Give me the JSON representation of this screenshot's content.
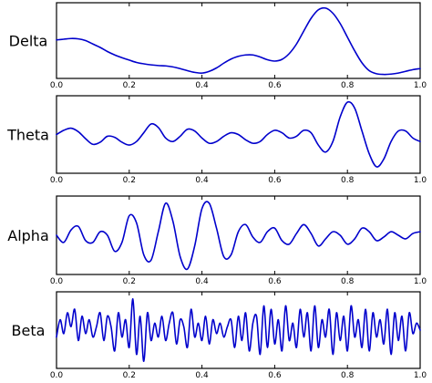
{
  "chart_data": [
    {
      "type": "line",
      "ylabel": "Delta",
      "xlim": [
        0,
        1
      ],
      "ylim": [
        -1,
        1
      ],
      "xticks": [
        "0.0",
        "0.2",
        "0.4",
        "0.6",
        "0.8",
        "1.0"
      ],
      "color": "#0000cc",
      "x": [
        0.0,
        0.02,
        0.04,
        0.06,
        0.08,
        0.1,
        0.12,
        0.14,
        0.16,
        0.18,
        0.2,
        0.22,
        0.24,
        0.26,
        0.28,
        0.3,
        0.32,
        0.34,
        0.36,
        0.38,
        0.4,
        0.42,
        0.44,
        0.46,
        0.48,
        0.5,
        0.52,
        0.54,
        0.56,
        0.58,
        0.6,
        0.62,
        0.64,
        0.66,
        0.68,
        0.7,
        0.72,
        0.74,
        0.76,
        0.78,
        0.8,
        0.82,
        0.84,
        0.86,
        0.88,
        0.9,
        0.92,
        0.94,
        0.96,
        0.98,
        1.0
      ],
      "y": [
        0.02,
        0.04,
        0.06,
        0.05,
        0.0,
        -0.1,
        -0.2,
        -0.32,
        -0.42,
        -0.5,
        -0.57,
        -0.64,
        -0.68,
        -0.71,
        -0.73,
        -0.74,
        -0.77,
        -0.82,
        -0.88,
        -0.93,
        -0.95,
        -0.9,
        -0.8,
        -0.66,
        -0.54,
        -0.46,
        -0.42,
        -0.42,
        -0.48,
        -0.56,
        -0.6,
        -0.55,
        -0.38,
        -0.1,
        0.28,
        0.65,
        0.9,
        0.95,
        0.8,
        0.5,
        0.1,
        -0.3,
        -0.65,
        -0.88,
        -0.97,
        -0.99,
        -0.98,
        -0.95,
        -0.9,
        -0.85,
        -0.82
      ]
    },
    {
      "type": "line",
      "ylabel": "Theta",
      "xlim": [
        0,
        1
      ],
      "ylim": [
        -1,
        1
      ],
      "xticks": [
        "0.0",
        "0.2",
        "0.4",
        "0.6",
        "0.8",
        "1.0"
      ],
      "color": "#0000cc",
      "x": [
        0.0,
        0.02,
        0.04,
        0.06,
        0.08,
        0.1,
        0.12,
        0.14,
        0.16,
        0.18,
        0.2,
        0.22,
        0.24,
        0.26,
        0.28,
        0.3,
        0.32,
        0.34,
        0.36,
        0.38,
        0.4,
        0.42,
        0.44,
        0.46,
        0.48,
        0.5,
        0.52,
        0.54,
        0.56,
        0.58,
        0.6,
        0.62,
        0.64,
        0.66,
        0.68,
        0.7,
        0.72,
        0.74,
        0.76,
        0.78,
        0.8,
        0.82,
        0.84,
        0.86,
        0.88,
        0.9,
        0.92,
        0.94,
        0.96,
        0.98,
        1.0
      ],
      "y": [
        0.0,
        0.12,
        0.18,
        0.08,
        -0.12,
        -0.28,
        -0.22,
        -0.05,
        -0.08,
        -0.22,
        -0.3,
        -0.2,
        0.05,
        0.3,
        0.2,
        -0.1,
        -0.2,
        -0.05,
        0.15,
        0.1,
        -0.1,
        -0.25,
        -0.2,
        -0.05,
        0.05,
        0.0,
        -0.15,
        -0.25,
        -0.2,
        0.0,
        0.12,
        0.05,
        -0.1,
        -0.05,
        0.12,
        0.05,
        -0.3,
        -0.5,
        -0.2,
        0.5,
        0.92,
        0.75,
        0.1,
        -0.55,
        -0.92,
        -0.7,
        -0.2,
        0.1,
        0.1,
        -0.1,
        -0.2
      ]
    },
    {
      "type": "line",
      "ylabel": "Alpha",
      "xlim": [
        0,
        1
      ],
      "ylim": [
        -1,
        1
      ],
      "xticks": [
        "0.0",
        "0.2",
        "0.4",
        "0.6",
        "0.8",
        "1.0"
      ],
      "color": "#0000cc",
      "x": [
        0.0,
        0.02,
        0.04,
        0.06,
        0.08,
        0.1,
        0.12,
        0.14,
        0.16,
        0.18,
        0.2,
        0.22,
        0.24,
        0.26,
        0.28,
        0.3,
        0.32,
        0.34,
        0.36,
        0.38,
        0.4,
        0.42,
        0.44,
        0.46,
        0.48,
        0.5,
        0.52,
        0.54,
        0.56,
        0.58,
        0.6,
        0.62,
        0.64,
        0.66,
        0.68,
        0.7,
        0.72,
        0.74,
        0.76,
        0.78,
        0.8,
        0.82,
        0.84,
        0.86,
        0.88,
        0.9,
        0.92,
        0.94,
        0.96,
        0.98,
        1.0
      ],
      "y": [
        0.0,
        -0.2,
        0.15,
        0.25,
        -0.15,
        -0.2,
        0.1,
        0.0,
        -0.45,
        -0.2,
        0.55,
        0.35,
        -0.55,
        -0.7,
        0.1,
        0.9,
        0.4,
        -0.6,
        -0.95,
        -0.3,
        0.75,
        0.9,
        0.2,
        -0.6,
        -0.55,
        0.1,
        0.3,
        -0.05,
        -0.2,
        0.1,
        0.2,
        -0.15,
        -0.25,
        0.05,
        0.3,
        0.05,
        -0.3,
        -0.1,
        0.1,
        0.0,
        -0.25,
        -0.1,
        0.2,
        0.1,
        -0.15,
        -0.05,
        0.1,
        0.0,
        -0.1,
        0.05,
        0.1
      ]
    },
    {
      "type": "line",
      "ylabel": "Beta",
      "xlim": [
        0,
        1
      ],
      "ylim": [
        -1,
        1
      ],
      "xticks": [
        "0.0",
        "0.2",
        "0.4",
        "0.6",
        "0.8",
        "1.0"
      ],
      "color": "#0000cc",
      "x": [
        0.0,
        0.01,
        0.02,
        0.03,
        0.04,
        0.05,
        0.06,
        0.07,
        0.08,
        0.09,
        0.1,
        0.11,
        0.12,
        0.13,
        0.14,
        0.15,
        0.16,
        0.17,
        0.18,
        0.19,
        0.2,
        0.21,
        0.22,
        0.23,
        0.24,
        0.25,
        0.26,
        0.27,
        0.28,
        0.29,
        0.3,
        0.31,
        0.32,
        0.33,
        0.34,
        0.35,
        0.36,
        0.37,
        0.38,
        0.39,
        0.4,
        0.41,
        0.42,
        0.43,
        0.44,
        0.45,
        0.46,
        0.47,
        0.48,
        0.49,
        0.5,
        0.51,
        0.52,
        0.53,
        0.54,
        0.55,
        0.56,
        0.57,
        0.58,
        0.59,
        0.6,
        0.61,
        0.62,
        0.63,
        0.64,
        0.65,
        0.66,
        0.67,
        0.68,
        0.69,
        0.7,
        0.71,
        0.72,
        0.73,
        0.74,
        0.75,
        0.76,
        0.77,
        0.78,
        0.79,
        0.8,
        0.81,
        0.82,
        0.83,
        0.84,
        0.85,
        0.86,
        0.87,
        0.88,
        0.89,
        0.9,
        0.91,
        0.92,
        0.93,
        0.94,
        0.95,
        0.96,
        0.97,
        0.98,
        0.99,
        1.0
      ],
      "y": [
        -0.2,
        0.3,
        -0.1,
        0.5,
        0.1,
        0.6,
        -0.3,
        0.4,
        -0.1,
        0.3,
        -0.2,
        0.1,
        0.5,
        -0.3,
        0.4,
        0.1,
        -0.6,
        0.5,
        -0.2,
        0.3,
        -0.5,
        0.9,
        -0.7,
        0.4,
        -0.9,
        0.5,
        -0.3,
        0.2,
        -0.2,
        0.4,
        -0.3,
        0.2,
        0.5,
        -0.4,
        0.3,
        0.1,
        -0.5,
        0.6,
        -0.2,
        0.2,
        -0.3,
        0.4,
        -0.4,
        0.3,
        -0.1,
        0.2,
        -0.2,
        0.1,
        0.3,
        -0.5,
        0.4,
        -0.3,
        0.5,
        -0.6,
        0.2,
        0.4,
        -0.7,
        0.7,
        -0.5,
        0.6,
        -0.4,
        0.3,
        -0.6,
        0.7,
        -0.3,
        0.2,
        -0.5,
        0.6,
        -0.2,
        0.5,
        -0.6,
        0.7,
        -0.5,
        0.3,
        -0.2,
        0.6,
        -0.7,
        0.5,
        -0.3,
        0.4,
        -0.6,
        0.7,
        -0.2,
        0.3,
        -0.5,
        0.6,
        -0.6,
        0.5,
        -0.2,
        0.3,
        -0.4,
        0.6,
        -0.7,
        0.5,
        -0.3,
        0.4,
        -0.6,
        0.5,
        -0.1,
        0.2,
        0.0
      ]
    }
  ]
}
